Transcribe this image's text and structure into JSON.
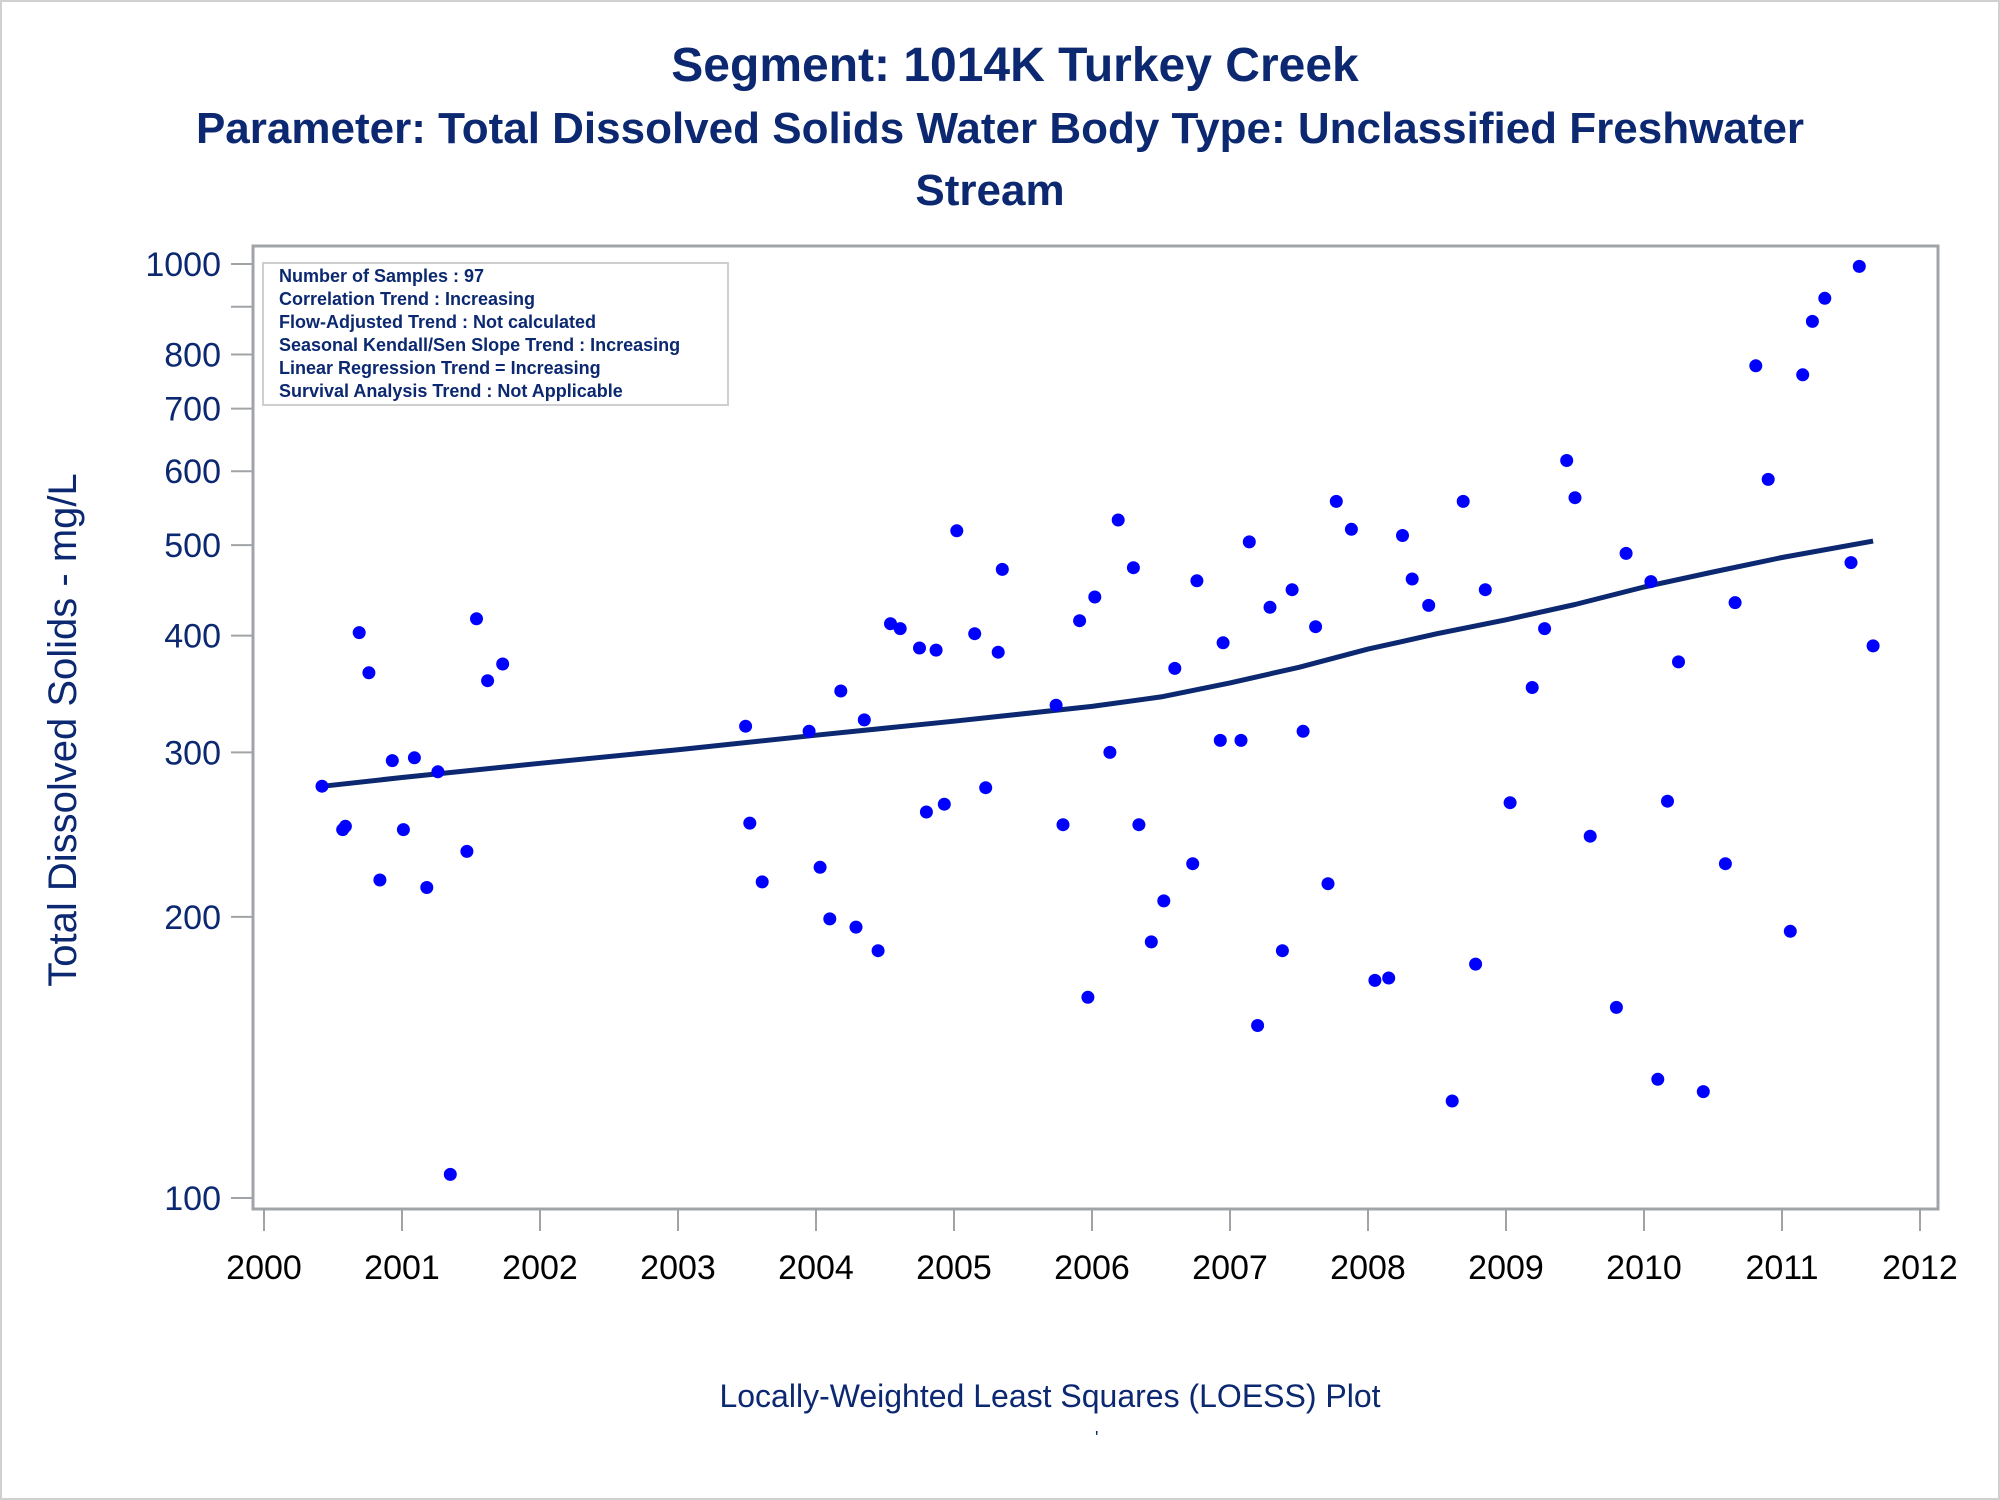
{
  "titles": {
    "line1": "Segment: 1014K  Turkey Creek",
    "line2": "Parameter: Total Dissolved Solids   Water Body Type: Unclassified Freshwater",
    "line3": "Stream"
  },
  "footnote": "Locally-Weighted Least Squares (LOESS) Plot",
  "footnote_mark": "'",
  "colors": {
    "title": "#0b2870",
    "points": "#0000ff",
    "loess_line": "#0b2870",
    "axis": "#a0a4a8",
    "tick_label_x": "#000000"
  },
  "chart_data": {
    "type": "scatter",
    "title": "Segment: 1014K  Turkey Creek",
    "subtitle": "Parameter: Total Dissolved Solids   Water Body Type: Unclassified Freshwater Stream",
    "xlabel": "",
    "ylabel": "Total Dissolved Solids - mg/L",
    "yscale": "log",
    "xlim": [
      2000,
      2012
    ],
    "ylim": [
      100,
      1000
    ],
    "xticks": [
      "2000",
      "2001",
      "2002",
      "2003",
      "2004",
      "2005",
      "2006",
      "2007",
      "2008",
      "2009",
      "2010",
      "2011",
      "2012"
    ],
    "yticks": [
      {
        "value": 100,
        "label": "100"
      },
      {
        "value": 200,
        "label": "200"
      },
      {
        "value": 300,
        "label": "300"
      },
      {
        "value": 400,
        "label": "400"
      },
      {
        "value": 500,
        "label": "500"
      },
      {
        "value": 600,
        "label": "600"
      },
      {
        "value": 700,
        "label": "700"
      },
      {
        "value": 800,
        "label": "800"
      },
      {
        "value": 900,
        "label": ""
      },
      {
        "value": 1000,
        "label": "1000"
      }
    ],
    "grid": false,
    "legend_position": "top-left",
    "stats_box": [
      "Number of Samples : 97",
      "Correlation Trend : Increasing",
      "Flow-Adjusted Trend : Not calculated",
      "Seasonal Kendall/Sen Slope Trend : Increasing",
      "Linear Regression Trend = Increasing",
      "Survival Analysis Trend : Not Applicable"
    ],
    "series": [
      {
        "name": "Samples",
        "type": "scatter",
        "points": [
          [
            2000.42,
            276
          ],
          [
            2000.57,
            248
          ],
          [
            2000.59,
            250
          ],
          [
            2000.69,
            403
          ],
          [
            2000.76,
            365
          ],
          [
            2000.84,
            219
          ],
          [
            2000.93,
            294
          ],
          [
            2001.01,
            248
          ],
          [
            2001.09,
            296
          ],
          [
            2001.18,
            215
          ],
          [
            2001.26,
            286
          ],
          [
            2001.35,
            106
          ],
          [
            2001.47,
            235
          ],
          [
            2001.54,
            417
          ],
          [
            2001.62,
            358
          ],
          [
            2001.73,
            373
          ],
          [
            2003.49,
            320
          ],
          [
            2003.52,
            252
          ],
          [
            2003.61,
            218
          ],
          [
            2003.95,
            316
          ],
          [
            2004.03,
            226
          ],
          [
            2004.1,
            199
          ],
          [
            2004.18,
            349
          ],
          [
            2004.29,
            195
          ],
          [
            2004.35,
            325
          ],
          [
            2004.45,
            184
          ],
          [
            2004.54,
            412
          ],
          [
            2004.61,
            407
          ],
          [
            2004.75,
            388
          ],
          [
            2004.8,
            259
          ],
          [
            2004.87,
            386
          ],
          [
            2004.93,
            264
          ],
          [
            2005.02,
            518
          ],
          [
            2005.15,
            402
          ],
          [
            2005.23,
            275
          ],
          [
            2005.32,
            384
          ],
          [
            2005.35,
            471
          ],
          [
            2005.74,
            337
          ],
          [
            2005.79,
            251
          ],
          [
            2005.91,
            415
          ],
          [
            2005.97,
            164
          ],
          [
            2006.02,
            440
          ],
          [
            2006.13,
            300
          ],
          [
            2006.19,
            532
          ],
          [
            2006.3,
            473
          ],
          [
            2006.34,
            251
          ],
          [
            2006.43,
            188
          ],
          [
            2006.52,
            208
          ],
          [
            2006.6,
            369
          ],
          [
            2006.73,
            228
          ],
          [
            2006.76,
            458
          ],
          [
            2006.93,
            309
          ],
          [
            2006.95,
            393
          ],
          [
            2007.08,
            309
          ],
          [
            2007.14,
            504
          ],
          [
            2007.2,
            153
          ],
          [
            2007.29,
            429
          ],
          [
            2007.38,
            184
          ],
          [
            2007.45,
            448
          ],
          [
            2007.53,
            316
          ],
          [
            2007.62,
            409
          ],
          [
            2007.71,
            217
          ],
          [
            2007.77,
            557
          ],
          [
            2007.88,
            520
          ],
          [
            2008.05,
            171
          ],
          [
            2008.15,
            172
          ],
          [
            2008.25,
            512
          ],
          [
            2008.32,
            460
          ],
          [
            2008.44,
            431
          ],
          [
            2008.61,
            127
          ],
          [
            2008.69,
            557
          ],
          [
            2008.78,
            178
          ],
          [
            2008.85,
            448
          ],
          [
            2009.03,
            265
          ],
          [
            2009.19,
            352
          ],
          [
            2009.28,
            407
          ],
          [
            2009.44,
            616
          ],
          [
            2009.5,
            562
          ],
          [
            2009.61,
            244
          ],
          [
            2009.8,
            160
          ],
          [
            2009.87,
            490
          ],
          [
            2010.05,
            457
          ],
          [
            2010.1,
            134
          ],
          [
            2010.17,
            266
          ],
          [
            2010.25,
            375
          ],
          [
            2010.43,
            130
          ],
          [
            2010.59,
            228
          ],
          [
            2010.66,
            434
          ],
          [
            2010.81,
            778
          ],
          [
            2010.9,
            588
          ],
          [
            2011.06,
            193
          ],
          [
            2011.15,
            761
          ],
          [
            2011.22,
            868
          ],
          [
            2011.31,
            919
          ],
          [
            2011.5,
            479
          ],
          [
            2011.56,
            994
          ],
          [
            2011.66,
            390
          ]
        ]
      },
      {
        "name": "LOESS",
        "type": "line",
        "points": [
          [
            2000.43,
            276
          ],
          [
            2001.0,
            282
          ],
          [
            2002.0,
            292
          ],
          [
            2003.0,
            302
          ],
          [
            2004.0,
            313
          ],
          [
            2005.0,
            324
          ],
          [
            2006.0,
            336
          ],
          [
            2006.5,
            344
          ],
          [
            2007.0,
            356
          ],
          [
            2007.5,
            370
          ],
          [
            2008.0,
            387
          ],
          [
            2008.5,
            402
          ],
          [
            2009.0,
            416
          ],
          [
            2009.5,
            432
          ],
          [
            2010.0,
            451
          ],
          [
            2010.5,
            468
          ],
          [
            2011.0,
            485
          ],
          [
            2011.66,
            505
          ]
        ]
      }
    ]
  }
}
